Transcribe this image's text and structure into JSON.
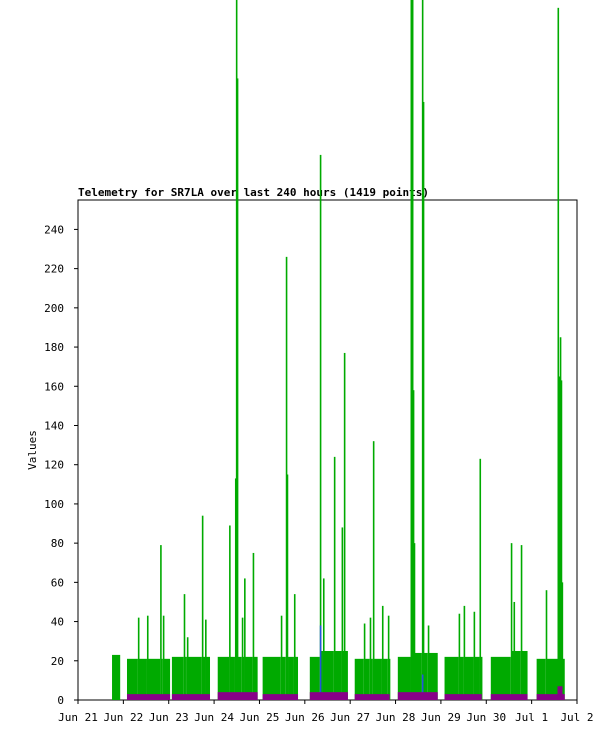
{
  "chart_data": {
    "type": "step",
    "title": "Telemetry for SR7LA over last 240 hours (1419 points)",
    "y_label": "Values",
    "xlim": [
      0,
      11
    ],
    "xticks": [
      {
        "value": 0,
        "label": "Jun 21"
      },
      {
        "value": 1,
        "label": "Jun 22"
      },
      {
        "value": 2,
        "label": "Jun 23"
      },
      {
        "value": 3,
        "label": "Jun 24"
      },
      {
        "value": 4,
        "label": "Jun 25"
      },
      {
        "value": 5,
        "label": "Jun 26"
      },
      {
        "value": 6,
        "label": "Jun 27"
      },
      {
        "value": 7,
        "label": "Jun 28"
      },
      {
        "value": 8,
        "label": "Jun 29"
      },
      {
        "value": 9,
        "label": "Jun 30"
      },
      {
        "value": 10,
        "label": "Jul 1"
      },
      {
        "value": 11,
        "label": "Jul 2"
      }
    ],
    "ylim": [
      0,
      255
    ],
    "yticks": [
      0,
      20,
      40,
      60,
      80,
      100,
      120,
      140,
      160,
      180,
      200,
      220,
      240
    ],
    "series": [
      {
        "color": "#00aa00",
        "x": [
          0.75,
          0.93,
          1.08,
          1.32,
          1.34,
          1.52,
          1.54,
          1.81,
          1.83,
          1.87,
          1.89,
          2.03,
          2.07,
          2.33,
          2.36,
          2.4,
          2.42,
          2.73,
          2.75,
          2.8,
          2.82,
          2.91,
          3.08,
          3.33,
          3.35,
          3.46,
          3.48,
          3.5,
          3.52,
          3.61,
          3.63,
          3.66,
          3.68,
          3.85,
          3.88,
          3.96,
          4.07,
          4.47,
          4.49,
          4.58,
          4.6,
          4.63,
          4.76,
          4.78,
          4.85,
          5.11,
          5.33,
          5.35,
          5.4,
          5.42,
          5.64,
          5.66,
          5.81,
          5.84,
          5.86,
          5.88,
          5.95,
          6.1,
          6.3,
          6.32,
          6.43,
          6.45,
          6.5,
          6.52,
          6.7,
          6.72,
          6.83,
          6.85,
          6.87,
          7.05,
          7.33,
          7.36,
          7.38,
          7.4,
          7.42,
          7.58,
          7.6,
          7.62,
          7.71,
          7.73,
          7.93,
          8.08,
          8.39,
          8.41,
          8.5,
          8.52,
          8.72,
          8.74,
          8.85,
          8.88,
          8.9,
          9.1,
          9.54,
          9.56,
          9.6,
          9.63,
          9.76,
          9.78,
          9.91,
          10.11,
          10.31,
          10.33,
          10.57,
          10.59,
          10.62,
          10.64,
          10.66,
          10.68,
          10.73
        ],
        "values": [
          23,
          0,
          21,
          42,
          21,
          43,
          21,
          79,
          21,
          43,
          21,
          0,
          22,
          54,
          22,
          32,
          22,
          94,
          22,
          41,
          22,
          0,
          22,
          89,
          22,
          113,
          357,
          317,
          22,
          42,
          22,
          62,
          22,
          75,
          22,
          0,
          22,
          43,
          22,
          226,
          115,
          22,
          54,
          22,
          0,
          22,
          278,
          25,
          62,
          25,
          124,
          25,
          88,
          25,
          177,
          25,
          0,
          21,
          39,
          21,
          42,
          21,
          132,
          21,
          48,
          21,
          43,
          21,
          0,
          22,
          357,
          357,
          158,
          80,
          24,
          357,
          305,
          24,
          38,
          24,
          0,
          22,
          44,
          22,
          48,
          22,
          45,
          22,
          123,
          22,
          0,
          22,
          80,
          25,
          50,
          25,
          79,
          25,
          0,
          21,
          56,
          21,
          353,
          165,
          185,
          163,
          60,
          21,
          0
        ]
      },
      {
        "color": "#2255dd",
        "x": [
          5.33,
          5.35,
          7.58,
          7.6
        ],
        "values": [
          38,
          0,
          13,
          0
        ]
      },
      {
        "color": "#880088",
        "x": [
          1.08,
          2.03,
          2.07,
          2.91,
          3.08,
          3.96,
          4.07,
          4.85,
          5.11,
          5.95,
          6.1,
          6.87,
          7.05,
          7.93,
          8.08,
          8.9,
          9.1,
          9.91,
          10.11,
          10.57,
          10.68,
          10.73
        ],
        "values": [
          3,
          0,
          3,
          0,
          4,
          0,
          3,
          0,
          4,
          0,
          3,
          0,
          4,
          0,
          3,
          0,
          3,
          0,
          3,
          7,
          3,
          0
        ]
      }
    ]
  }
}
